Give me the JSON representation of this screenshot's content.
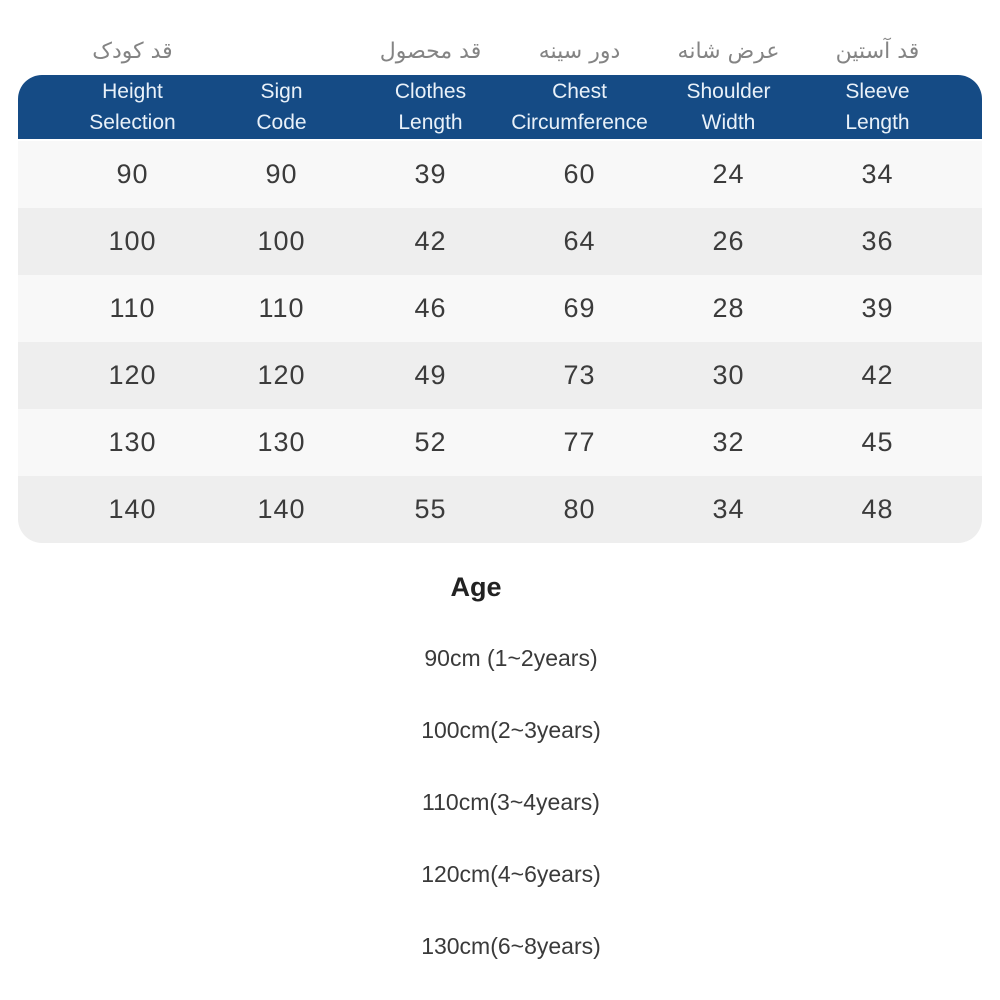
{
  "table": {
    "columns": [
      {
        "fa": "قد کودک",
        "en": "Height\nSelection"
      },
      {
        "fa": "",
        "en": "Sign\nCode"
      },
      {
        "fa": "قد محصول",
        "en": "Clothes\nLength"
      },
      {
        "fa": "دور سینه",
        "en": "Chest\nCircumference"
      },
      {
        "fa": "عرض شانه",
        "en": "Shoulder\nWidth"
      },
      {
        "fa": "قد آستین",
        "en": "Sleeve\nLength"
      }
    ],
    "rows": [
      [
        "90",
        "90",
        "39",
        "60",
        "24",
        "34"
      ],
      [
        "100",
        "100",
        "42",
        "64",
        "26",
        "36"
      ],
      [
        "110",
        "110",
        "46",
        "69",
        "28",
        "39"
      ],
      [
        "120",
        "120",
        "49",
        "73",
        "30",
        "42"
      ],
      [
        "130",
        "130",
        "52",
        "77",
        "32",
        "45"
      ],
      [
        "140",
        "140",
        "55",
        "80",
        "34",
        "48"
      ]
    ]
  },
  "age": {
    "title": "Age",
    "items": [
      "90cm (1~2years)",
      "100cm(2~3years)",
      "110cm(3~4years)",
      "120cm(4~6years)",
      "130cm(6~8years)"
    ]
  },
  "colors": {
    "header_bg": "#154b85",
    "header_text": "#e9f1f9",
    "row_light": "#f8f8f8",
    "row_dark": "#eeeeee",
    "persian_label_text": "#848484",
    "cell_text": "#3b3b3b"
  }
}
